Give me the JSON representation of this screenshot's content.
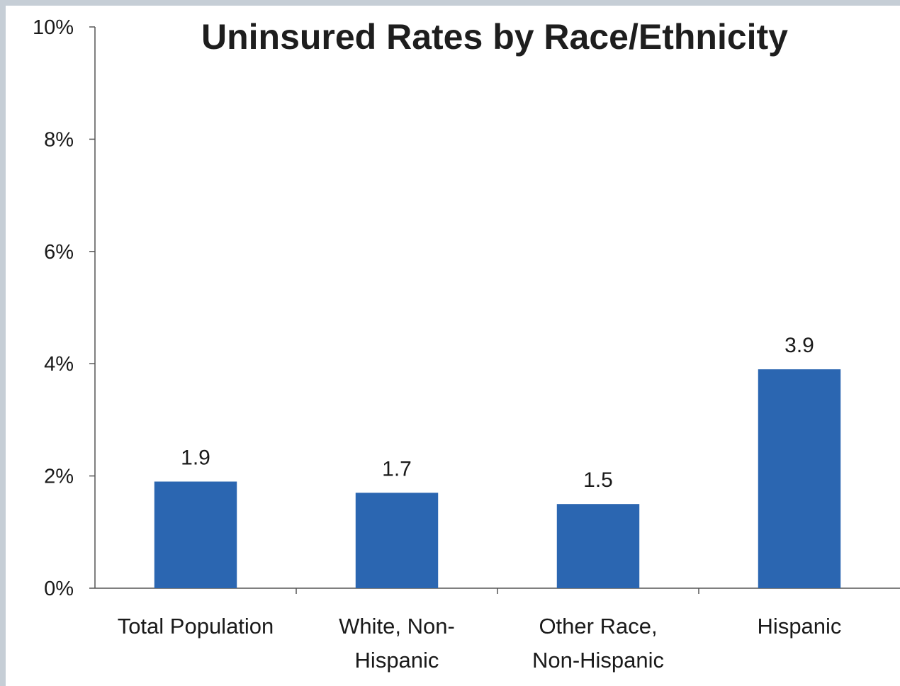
{
  "chart_data": {
    "type": "bar",
    "title": "Uninsured Rates by Race/Ethnicity",
    "xlabel": "",
    "ylabel": "",
    "categories": [
      [
        "Total Population"
      ],
      [
        "White, Non-",
        "Hispanic"
      ],
      [
        "Other Race,",
        "Non-Hispanic"
      ],
      [
        "Hispanic"
      ]
    ],
    "values": [
      1.9,
      1.7,
      1.5,
      3.9
    ],
    "data_labels": [
      "1.9",
      "1.7",
      "1.5",
      "3.9"
    ],
    "ylim": [
      0,
      10
    ],
    "yticks": [
      0,
      2,
      4,
      6,
      8,
      10
    ],
    "ytick_labels": [
      "0%",
      "2%",
      "4%",
      "6%",
      "8%",
      "10%"
    ],
    "grid": false,
    "legend": "none",
    "colors": {
      "bar": "#2b66b1"
    }
  }
}
